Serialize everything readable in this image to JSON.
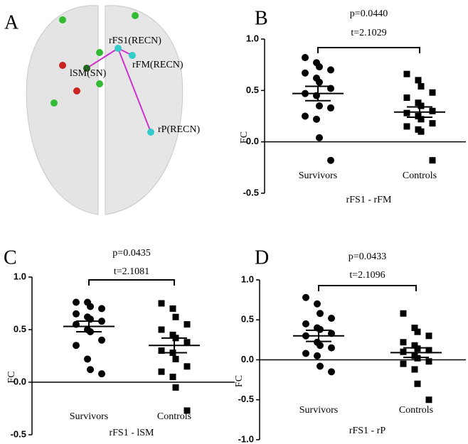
{
  "panel_a": {
    "letter": "A",
    "labels": [
      "rFS1(RECN)",
      "rFM(RECN)",
      "lSM(SN)",
      "rP(RECN)"
    ]
  },
  "chart_data": [
    {
      "type": "dot",
      "letter": "B",
      "p_text": "p=0.0440",
      "t_text": "t=2.1029",
      "x_label": "rFS1 - rFM",
      "y_label": "FC",
      "categories": [
        "Survivors",
        "Controls"
      ],
      "groups": [
        {
          "marker": "circle",
          "color": "#000000",
          "values": [
            0.82,
            0.77,
            0.73,
            0.7,
            0.67,
            0.62,
            0.58,
            0.52,
            0.47,
            0.45,
            0.35,
            0.33,
            0.25,
            0.22,
            0.04,
            -0.18
          ],
          "mean": 0.47,
          "sem": 0.07
        },
        {
          "marker": "square",
          "color": "#000000",
          "values": [
            0.66,
            0.6,
            0.54,
            0.48,
            0.43,
            0.38,
            0.35,
            0.3,
            0.28,
            0.25,
            0.22,
            0.18,
            0.15,
            0.12,
            0.1,
            -0.18
          ],
          "mean": 0.29,
          "sem": 0.05
        }
      ],
      "ylim": [
        -0.5,
        1.0
      ],
      "yticks": [
        {
          "value": 1.0,
          "label": "1.0"
        },
        0.5,
        {
          "value": 0.0,
          "label": "0.0"
        },
        -0.5
      ]
    },
    {
      "type": "dot",
      "letter": "C",
      "p_text": "p=0.0435",
      "t_text": "t=2.1081",
      "x_label": "rFS1 - lSM",
      "y_label": "FC",
      "categories": [
        "Survivors",
        "Controls"
      ],
      "groups": [
        {
          "marker": "circle",
          "color": "#000000",
          "values": [
            0.76,
            0.76,
            0.72,
            0.7,
            0.65,
            0.62,
            0.6,
            0.58,
            0.55,
            0.5,
            0.48,
            0.4,
            0.35,
            0.22,
            0.12,
            0.08
          ],
          "mean": 0.53,
          "sem": 0.05
        },
        {
          "marker": "square",
          "color": "#000000",
          "values": [
            0.75,
            0.7,
            0.62,
            0.55,
            0.5,
            0.45,
            0.42,
            0.38,
            0.3,
            0.28,
            0.22,
            0.15,
            0.1,
            0.05,
            -0.05,
            -0.27
          ],
          "mean": 0.35,
          "sem": 0.07
        }
      ],
      "ylim": [
        -0.5,
        1.0
      ],
      "yticks": [
        {
          "value": 1.0,
          "label": "1.0"
        },
        0.5,
        {
          "value": 0.0,
          "label": "0.0"
        },
        -0.5
      ]
    },
    {
      "type": "dot",
      "letter": "D",
      "p_text": "p=0.0433",
      "t_text": "t=2.1096",
      "x_label": "rFS1 - rP",
      "y_label": "FC",
      "categories": [
        "Survivors",
        "Controls"
      ],
      "groups": [
        {
          "marker": "circle",
          "color": "#000000",
          "values": [
            0.78,
            0.7,
            0.58,
            0.52,
            0.45,
            0.4,
            0.38,
            0.33,
            0.3,
            0.22,
            0.18,
            0.15,
            0.08,
            0.05,
            -0.08,
            -0.15
          ],
          "mean": 0.3,
          "sem": 0.07
        },
        {
          "marker": "square",
          "color": "#000000",
          "values": [
            0.58,
            0.4,
            0.35,
            0.3,
            0.22,
            0.18,
            0.14,
            0.12,
            0.1,
            0.05,
            0.02,
            -0.02,
            -0.05,
            -0.12,
            -0.3,
            -0.5
          ],
          "mean": 0.09,
          "sem": 0.06
        }
      ],
      "ylim": [
        -1.0,
        1.0
      ],
      "yticks": [
        {
          "value": 1.0,
          "label": "1.0"
        },
        0.5,
        {
          "value": 0.0,
          "label": "0.0"
        },
        -0.5,
        {
          "value": -1.0,
          "label": "-1.0"
        }
      ]
    }
  ]
}
